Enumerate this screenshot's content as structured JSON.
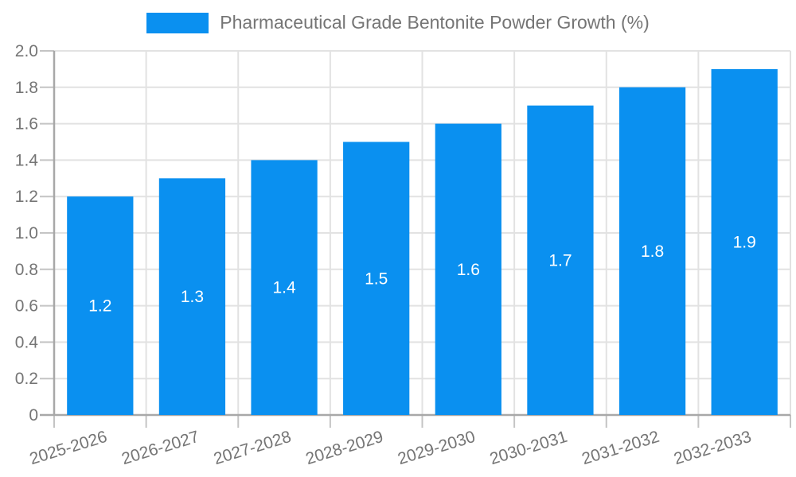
{
  "chart_data": {
    "type": "bar",
    "title": "Pharmaceutical Grade Bentonite Powder Growth (%)",
    "categories": [
      "2025-2026",
      "2026-2027",
      "2027-2028",
      "2028-2029",
      "2029-2030",
      "2030-2031",
      "2031-2032",
      "2032-2033"
    ],
    "values": [
      1.2,
      1.3,
      1.4,
      1.5,
      1.6,
      1.7,
      1.8,
      1.9
    ],
    "bar_labels": [
      "1.2",
      "1.3",
      "1.4",
      "1.5",
      "1.6",
      "1.7",
      "1.8",
      "1.9"
    ],
    "xlabel": "",
    "ylabel": "",
    "ylim": [
      0,
      2
    ],
    "y_ticks": [
      "0",
      "0.2",
      "0.4",
      "0.6",
      "0.8",
      "1.0",
      "1.2",
      "1.4",
      "1.6",
      "1.8",
      "2.0"
    ],
    "grid": true,
    "legend_position": "top",
    "x_label_rotation_deg": -17,
    "colors": {
      "bar": "#0a90f0",
      "grid": "#e2e2e2",
      "axis": "#a8a8a8",
      "tick": "#c4c4c4",
      "text": "#757575",
      "bar_label": "#ffffff",
      "background": "#ffffff"
    }
  }
}
